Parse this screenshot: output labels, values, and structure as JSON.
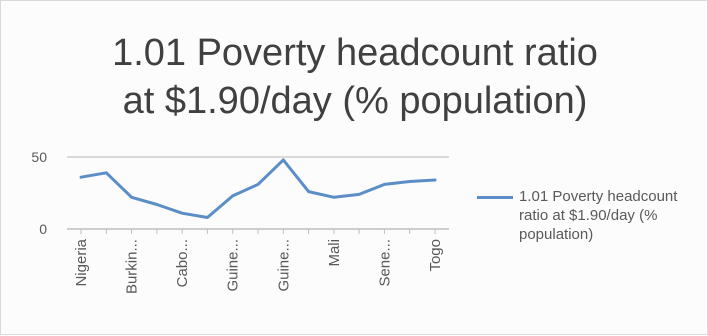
{
  "chart_data": {
    "type": "line",
    "title_lines": [
      "1.01 Poverty headcount ratio",
      "at $1.90/day (% population)"
    ],
    "categories": [
      "Nigeria",
      "",
      "Burkin...",
      "",
      "Cabo...",
      "",
      "Guine...",
      "",
      "Guine...",
      "",
      "Mali",
      "",
      "Sene...",
      "",
      "Togo"
    ],
    "series": [
      {
        "name": "1.01 Poverty headcount ratio at $1.90/day (% population)",
        "color": "#5b8ec7",
        "values": [
          36,
          39,
          22,
          17,
          11,
          8,
          23,
          31,
          48,
          26,
          22,
          24,
          31,
          33,
          34
        ]
      }
    ],
    "yticks": [
      "0",
      "50"
    ],
    "ylim": [
      0,
      50
    ],
    "grid": false,
    "legend_position": "right"
  }
}
